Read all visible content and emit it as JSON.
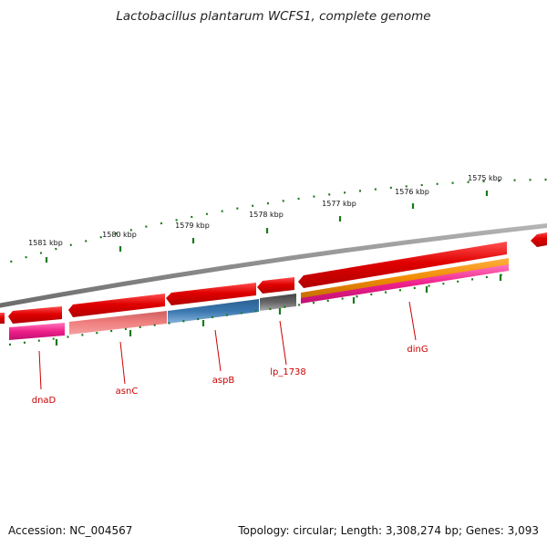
{
  "title": "Lactobacillus plantarum WCFS1, complete genome",
  "ticks": [
    "1581 kbp",
    "1580 kbp",
    "1579 kbp",
    "1578 kbp",
    "1577 kbp",
    "1576 kbp",
    "1575 kbp"
  ],
  "genes": [
    {
      "name": "dnaD",
      "color": "#ee1f8a"
    },
    {
      "name": "asnC",
      "color": "#f08080"
    },
    {
      "name": "aspB",
      "color": "#3a78b0"
    },
    {
      "name": "lp_1738",
      "color": "#666666"
    },
    {
      "name": "dinG",
      "color": "#ee1f8a"
    }
  ],
  "colors": {
    "cds": "#e00000",
    "backbone": "#8c8c8c",
    "tick": "#1a7a1a",
    "orange": "#f08a00",
    "label": "#cc0000"
  },
  "footer": {
    "accession": "Accession: NC_004567",
    "stats": "Topology: circular; Length: 3,308,274 bp; Genes: 3,093"
  }
}
